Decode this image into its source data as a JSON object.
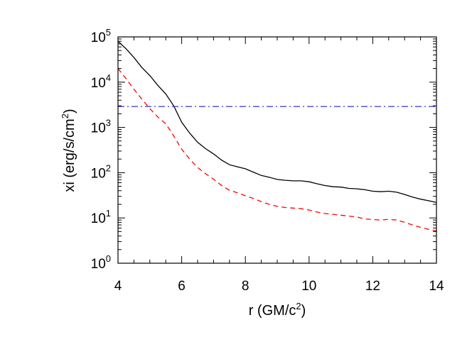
{
  "chart_data": {
    "type": "line",
    "title": "",
    "xlabel": "r (GM/c",
    "xlabel_sup": "2",
    "xlabel_end": ")",
    "ylabel": "xi (erg/s/cm",
    "ylabel_sup": "2",
    "ylabel_end": ")",
    "xlim": [
      4,
      14
    ],
    "ylim": [
      1,
      100000
    ],
    "yscale": "log",
    "grid": false,
    "legend": "none",
    "x_ticks": [
      "4",
      "6",
      "8",
      "10",
      "12",
      "14"
    ],
    "y_ticks": [
      {
        "base": "10",
        "exp": "0"
      },
      {
        "base": "10",
        "exp": "1"
      },
      {
        "base": "10",
        "exp": "2"
      },
      {
        "base": "10",
        "exp": "3"
      },
      {
        "base": "10",
        "exp": "4"
      },
      {
        "base": "10",
        "exp": "5"
      }
    ],
    "series": [
      {
        "style": "solid",
        "color": "#000000",
        "x": [
          4.0,
          4.25,
          4.5,
          4.75,
          5.0,
          5.25,
          5.5,
          5.75,
          6.0,
          6.25,
          6.5,
          6.75,
          7.0,
          7.25,
          7.5,
          7.75,
          8.0,
          8.25,
          8.5,
          8.75,
          9.0,
          9.25,
          9.5,
          9.75,
          10.0,
          10.25,
          10.5,
          10.75,
          11.0,
          11.25,
          11.5,
          11.75,
          12.0,
          12.25,
          12.5,
          12.75,
          13.0,
          13.25,
          13.5,
          13.75,
          14.0
        ],
        "y": [
          80000,
          55000,
          35000,
          21000,
          14000,
          8500,
          5500,
          3000,
          1300,
          750,
          470,
          340,
          260,
          190,
          150,
          135,
          122,
          103,
          87,
          79,
          71,
          68,
          66,
          66,
          63,
          57,
          52,
          49,
          48,
          45,
          44,
          42,
          39,
          38,
          39,
          37,
          33,
          29,
          26,
          24,
          22
        ]
      },
      {
        "style": "dashed",
        "color": "#ff0000",
        "x": [
          4.0,
          4.25,
          4.5,
          4.75,
          5.0,
          5.25,
          5.5,
          5.75,
          6.0,
          6.25,
          6.5,
          6.75,
          7.0,
          7.25,
          7.5,
          7.75,
          8.0,
          8.25,
          8.5,
          8.75,
          9.0,
          9.25,
          9.5,
          9.75,
          10.0,
          10.25,
          10.5,
          10.75,
          11.0,
          11.25,
          11.5,
          11.75,
          12.0,
          12.25,
          12.5,
          12.75,
          13.0,
          13.25,
          13.5,
          13.75,
          14.0
        ],
        "y": [
          20000,
          12000,
          7000,
          4200,
          2600,
          1700,
          1200,
          650,
          330,
          200,
          130,
          95,
          72,
          52,
          41,
          36,
          31,
          27,
          23,
          20,
          18,
          17,
          16.5,
          16,
          15,
          13.5,
          12.5,
          12,
          11.5,
          11,
          10.5,
          9.5,
          9.2,
          9,
          9.3,
          9,
          8,
          7,
          6.2,
          5.6,
          5.2
        ]
      },
      {
        "style": "dash-dot",
        "color": "#3333dd",
        "x": [
          4.0,
          14.0
        ],
        "y": [
          2900,
          2900
        ]
      }
    ]
  }
}
